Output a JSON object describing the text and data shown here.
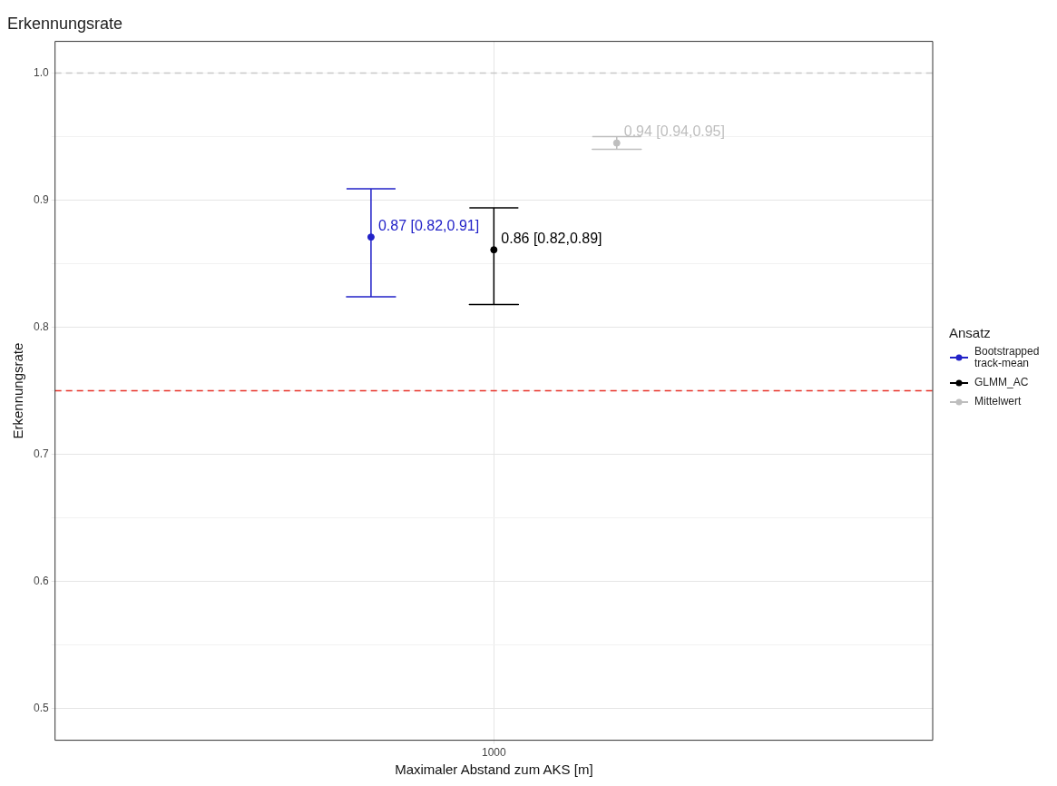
{
  "chart_data": {
    "type": "scatter",
    "title": "Erkennungsrate",
    "xlabel": "Maximaler Abstand zum AKS [m]",
    "ylabel": "Erkennungsrate",
    "legend_title": "Ansatz",
    "categories": [
      "1000"
    ],
    "series": [
      {
        "name": "Bootstrapped track-mean",
        "color": "#2222c8",
        "values": [
          0.871
        ],
        "errors": [
          [
            0.824,
            0.909
          ]
        ],
        "value_labels": [
          "0.87 [0.82,0.91]"
        ]
      },
      {
        "name": "GLMM_AC",
        "color": "#000000",
        "values": [
          0.861
        ],
        "errors": [
          [
            0.818,
            0.894
          ]
        ],
        "value_labels": [
          "0.86 [0.82,0.89]"
        ]
      },
      {
        "name": "Mittelwert",
        "color": "#bebebe",
        "values": [
          0.945
        ],
        "errors": [
          [
            0.94,
            0.95
          ]
        ],
        "value_labels": [
          "0.94 [0.94,0.95]"
        ]
      }
    ],
    "ylim": [
      0.475,
      1.025
    ],
    "yticks": [
      0.5,
      {
        "value": 0.55,
        "label": null
      },
      0.6,
      {
        "value": 0.65,
        "label": null
      },
      0.7,
      {
        "value": 0.75,
        "label": null
      },
      0.8,
      {
        "value": 0.85,
        "label": null
      },
      0.9,
      {
        "value": 0.95,
        "label": null
      },
      {
        "value": 1.0,
        "label": "1.0"
      }
    ],
    "ref_lines": [
      {
        "axis": "y",
        "value": 1.0,
        "color": "#c8c8c8",
        "line_style": "dashed"
      },
      {
        "axis": "y",
        "value": 0.75,
        "color": "#e8332a",
        "line_style": "dashed"
      }
    ],
    "grid": true,
    "legend": "right",
    "marker": "circle"
  }
}
